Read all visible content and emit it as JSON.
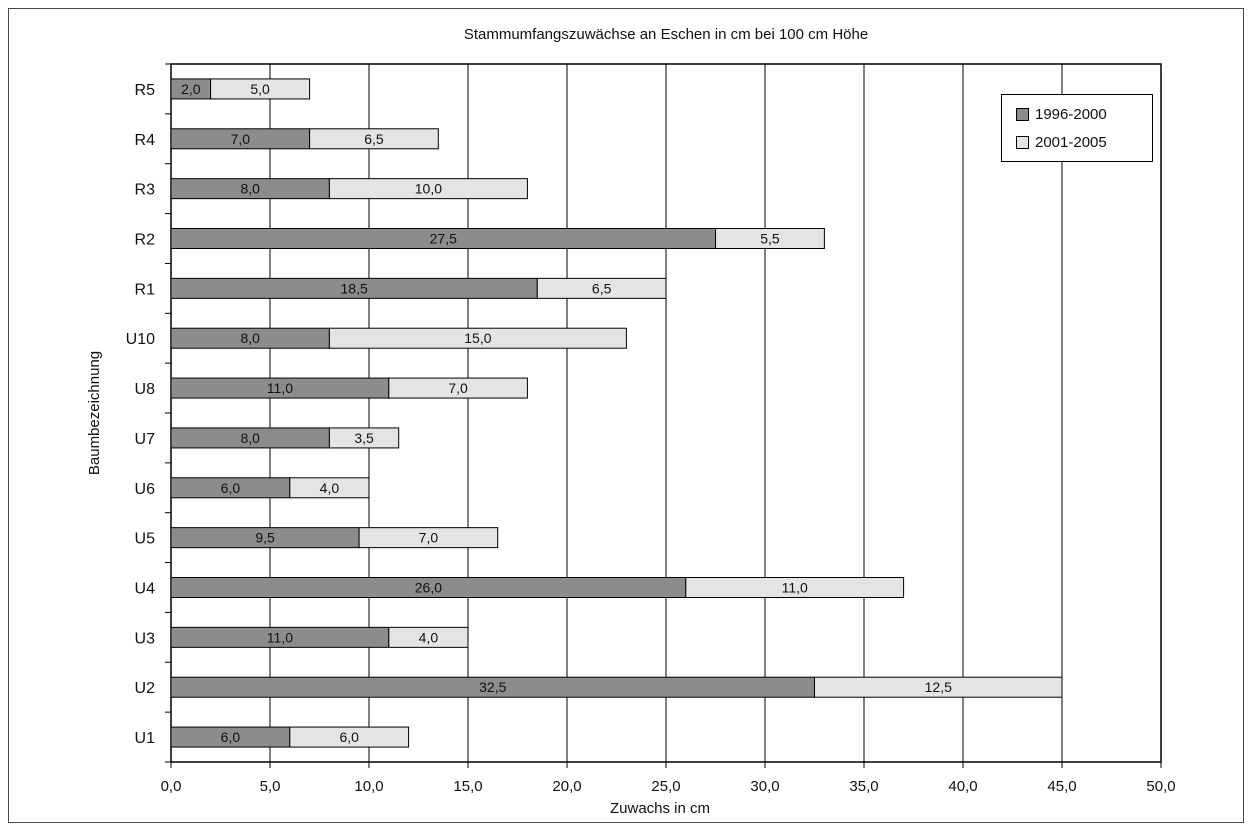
{
  "chart_data": {
    "type": "bar",
    "orientation": "horizontal",
    "stacked": true,
    "title": "Stammumfangszuwächse an Eschen in cm bei 100 cm Höhe",
    "xlabel": "Zuwachs in cm",
    "ylabel": "Baumbezeichnung",
    "xlim": [
      0,
      50
    ],
    "x_tick_step": 5,
    "x_tick_labels": [
      "0,0",
      "5,0",
      "10,0",
      "15,0",
      "20,0",
      "25,0",
      "30,0",
      "35,0",
      "40,0",
      "45,0",
      "50,0"
    ],
    "grid": "vertical",
    "legend_position": "top-right",
    "categories": [
      "R5",
      "R4",
      "R3",
      "R2",
      "R1",
      "U10",
      "U8",
      "U7",
      "U6",
      "U5",
      "U4",
      "U3",
      "U2",
      "U1"
    ],
    "series": [
      {
        "name": "1996-2000",
        "color": "#8c8c8c",
        "values": [
          2.0,
          7.0,
          8.0,
          27.5,
          18.5,
          8.0,
          11.0,
          8.0,
          6.0,
          9.5,
          26.0,
          11.0,
          32.5,
          6.0
        ],
        "labels": [
          "2,0",
          "7,0",
          "8,0",
          "27,5",
          "18,5",
          "8,0",
          "11,0",
          "8,0",
          "6,0",
          "9,5",
          "26,0",
          "11,0",
          "32,5",
          "6,0"
        ]
      },
      {
        "name": "2001-2005",
        "color": "#e4e4e4",
        "values": [
          5.0,
          6.5,
          10.0,
          5.5,
          6.5,
          15.0,
          7.0,
          3.5,
          4.0,
          7.0,
          11.0,
          4.0,
          12.5,
          6.0
        ],
        "labels": [
          "5,0",
          "6,5",
          "10,0",
          "5,5",
          "6,5",
          "15,0",
          "7,0",
          "3,5",
          "4,0",
          "7,0",
          "11,0",
          "4,0",
          "12,5",
          "6,0"
        ]
      }
    ]
  }
}
